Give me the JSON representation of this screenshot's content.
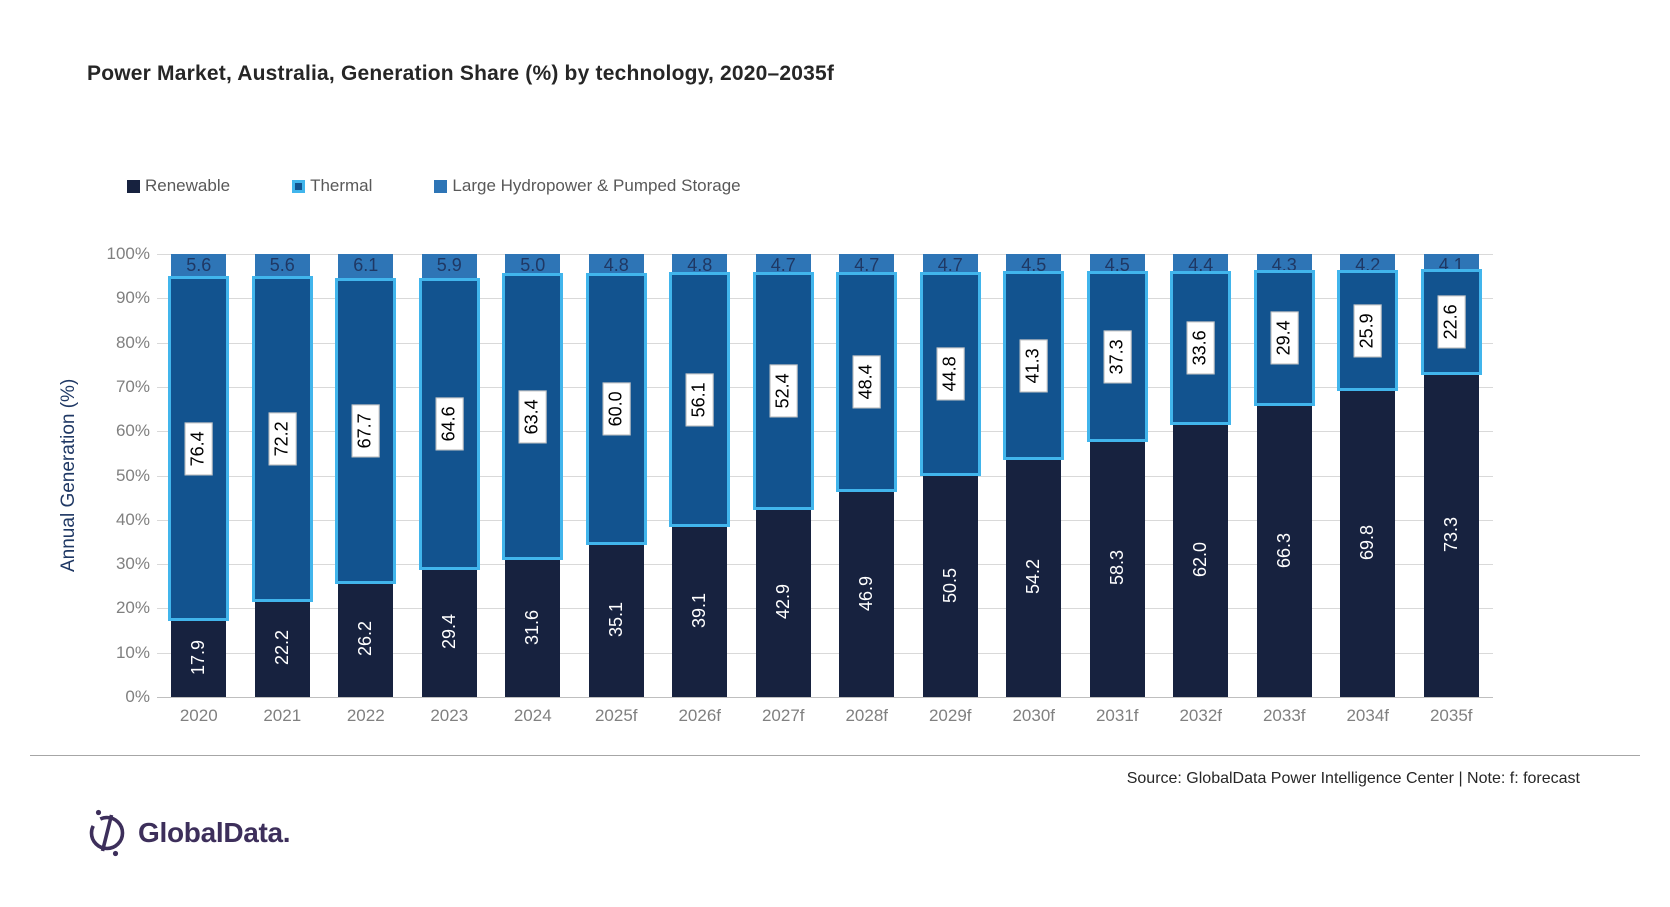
{
  "header": {
    "title": "Power Market, Australia, Generation Share (%) by technology, 2020–2035f"
  },
  "chart_data": {
    "type": "bar",
    "stacked": true,
    "title": "Power Market, Australia, Generation Share (%) by technology, 2020–2035f",
    "xlabel": "",
    "ylabel": "Annual Generation (%)",
    "ylim": [
      0,
      100
    ],
    "ytick_labels": [
      "100%",
      "90%",
      "80%",
      "70%",
      "60%",
      "50%",
      "40%",
      "30%",
      "20%",
      "10%",
      "0%"
    ],
    "grid": true,
    "legend_position": "top",
    "categories": [
      "2020",
      "2021",
      "2022",
      "2023",
      "2024",
      "2025f",
      "2026f",
      "2027f",
      "2028f",
      "2029f",
      "2030f",
      "2031f",
      "2032f",
      "2033f",
      "2034f",
      "2035f"
    ],
    "series": [
      {
        "name": "Renewable",
        "color": "#17223F",
        "label_style": "white-on-bar",
        "values": [
          17.9,
          22.2,
          26.2,
          29.4,
          31.6,
          35.1,
          39.1,
          42.9,
          46.9,
          50.5,
          54.2,
          58.3,
          62.0,
          66.3,
          69.8,
          73.3
        ]
      },
      {
        "name": "Thermal",
        "color": "#12538F",
        "border_color": "#41B5EC",
        "label_style": "boxed",
        "values": [
          76.4,
          72.2,
          67.7,
          64.6,
          63.4,
          60.0,
          56.1,
          52.4,
          48.4,
          44.8,
          41.3,
          37.3,
          33.6,
          29.4,
          25.9,
          22.6
        ]
      },
      {
        "name": "Large Hydropower & Pumped Storage",
        "color": "#2E75B6",
        "label_style": "top-inside",
        "values": [
          5.6,
          5.6,
          6.1,
          5.9,
          5.0,
          4.8,
          4.8,
          4.7,
          4.7,
          4.7,
          4.5,
          4.5,
          4.4,
          4.3,
          4.2,
          4.1
        ]
      }
    ]
  },
  "footer": {
    "source_note": "Source: GlobalData Power Intelligence Center | Note: f: forecast",
    "logo_text": "GlobalData."
  },
  "colors": {
    "renewable": "#17223F",
    "thermal_fill": "#12538F",
    "thermal_border": "#41B5EC",
    "hydro": "#2E75B6",
    "gridline": "#D9D9D9",
    "axis_line": "#BFBFBF",
    "tick_text": "#808080",
    "legend_text": "#595959",
    "yaxis_title_text": "#1F3864",
    "logo": "#3D2F5B"
  }
}
